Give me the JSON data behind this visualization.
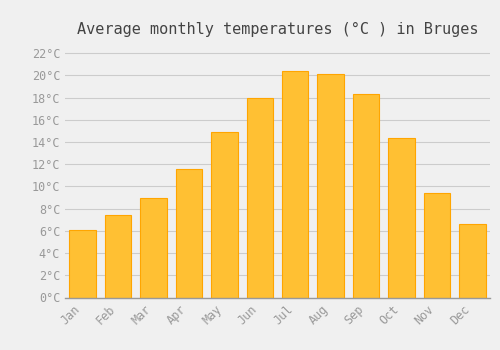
{
  "months": [
    "Jan",
    "Feb",
    "Mar",
    "Apr",
    "May",
    "Jun",
    "Jul",
    "Aug",
    "Sep",
    "Oct",
    "Nov",
    "Dec"
  ],
  "temperatures": [
    6.1,
    7.4,
    9.0,
    11.6,
    14.9,
    18.0,
    20.4,
    20.1,
    18.3,
    14.4,
    9.4,
    6.6
  ],
  "bar_color": "#FFC033",
  "bar_edge_color": "#FFA500",
  "background_color": "#F0F0F0",
  "grid_color": "#CCCCCC",
  "title": "Average monthly temperatures (°C ) in Bruges",
  "title_fontsize": 11,
  "title_font_family": "monospace",
  "tick_font_family": "monospace",
  "tick_fontsize": 8.5,
  "ylim": [
    0,
    23
  ],
  "yticks": [
    0,
    2,
    4,
    6,
    8,
    10,
    12,
    14,
    16,
    18,
    20,
    22
  ],
  "tick_color": "#999999"
}
